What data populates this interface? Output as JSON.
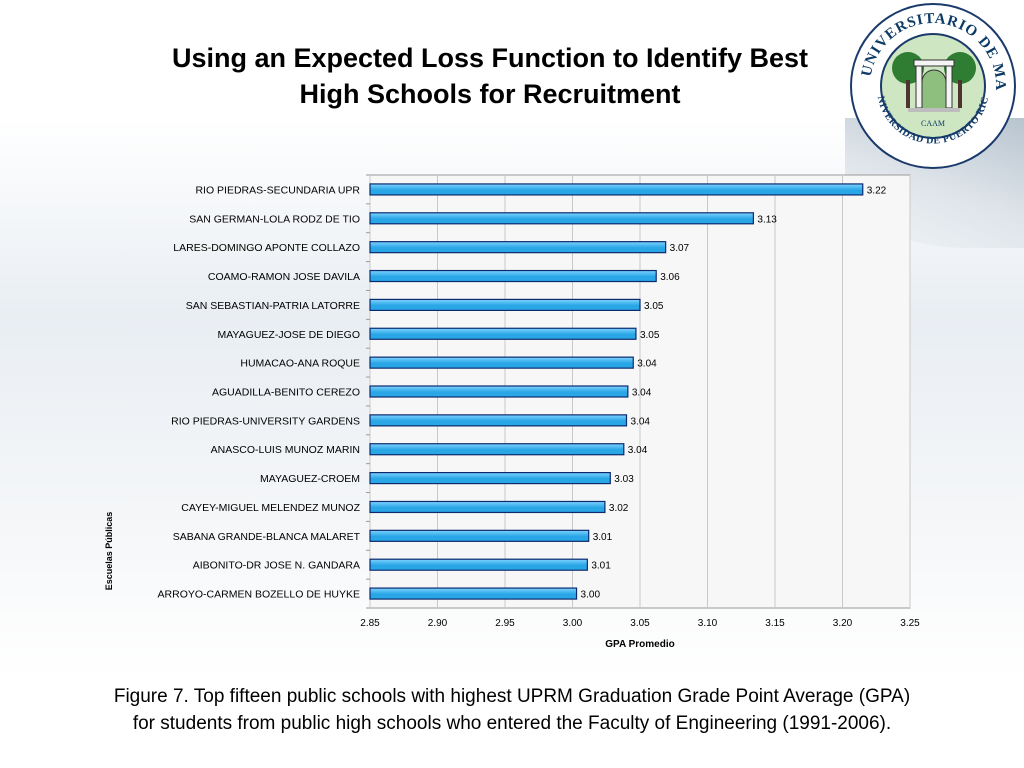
{
  "slide": {
    "title_line1": "Using an Expected Loss Function to Identify Best",
    "title_line2": "High Schools for Recruitment",
    "caption_line1": "Figure 7. Top fifteen public schools with highest UPRM Graduation Grade Point Average (GPA)",
    "caption_line2": "for students from public high schools who entered the Faculty of Engineering (1991-2006)."
  },
  "seal": {
    "top_text": "RECINTO UNIVERSITARIO DE MAYAGUEZ",
    "bottom_text": "UNIVERSIDAD DE PUERTO RICO",
    "center_text": "CAAM",
    "colors": {
      "ring": "#2e7d32",
      "inner": "#1b5e20",
      "text": "#0d3b66"
    }
  },
  "chart_data": {
    "type": "bar",
    "orientation": "horizontal",
    "title": "",
    "xlabel": "GPA Promedio",
    "ylabel": "Escuelas Públicas",
    "xlim": [
      2.85,
      3.25
    ],
    "xticks": [
      "2.85",
      "2.90",
      "2.95",
      "3.00",
      "3.05",
      "3.10",
      "3.15",
      "3.20",
      "3.25"
    ],
    "grid": true,
    "colors": {
      "bar": "#29a6e6",
      "bar_highlight": "#7fd3ff",
      "bar_edge": "#0c2a6e",
      "plot_bg": "#f7f7f7",
      "grid": "#c8c8c8"
    },
    "categories": [
      "RIO PIEDRAS-SECUNDARIA UPR",
      "SAN GERMAN-LOLA RODZ DE TIO",
      "LARES-DOMINGO APONTE COLLAZO",
      "COAMO-RAMON JOSE DAVILA",
      "SAN SEBASTIAN-PATRIA LATORRE",
      "MAYAGUEZ-JOSE DE DIEGO",
      "HUMACAO-ANA ROQUE",
      "AGUADILLA-BENITO CEREZO",
      "RIO PIEDRAS-UNIVERSITY GARDENS",
      "ANASCO-LUIS MUNOZ MARIN",
      "MAYAGUEZ-CROEM",
      "CAYEY-MIGUEL MELENDEZ MUNOZ",
      "SABANA GRANDE-BLANCA MALARET",
      "AIBONITO-DR JOSE N. GANDARA",
      "ARROYO-CARMEN BOZELLO DE HUYKE"
    ],
    "values": [
      3.215,
      3.134,
      3.069,
      3.062,
      3.05,
      3.047,
      3.045,
      3.041,
      3.04,
      3.038,
      3.028,
      3.024,
      3.012,
      3.011,
      3.003
    ],
    "value_labels": [
      "3.22",
      "3.13",
      "3.07",
      "3.06",
      "3.05",
      "3.05",
      "3.04",
      "3.04",
      "3.04",
      "3.04",
      "3.03",
      "3.02",
      "3.01",
      "3.01",
      "3.00"
    ]
  }
}
